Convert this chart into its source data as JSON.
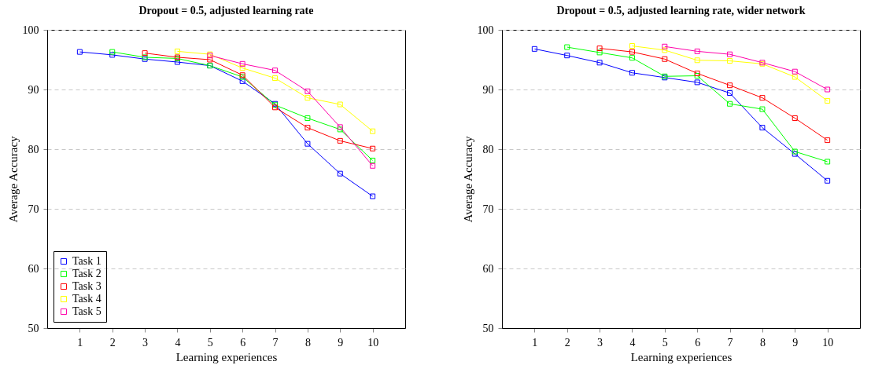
{
  "chart_data": [
    {
      "type": "line",
      "title": "Dropout = 0.5, adjusted learning rate",
      "xlabel": "Learning experiences",
      "ylabel": "Average Accuracy",
      "x": [
        1,
        2,
        3,
        4,
        5,
        6,
        7,
        8,
        9,
        10
      ],
      "xlim": [
        0,
        11
      ],
      "xticks": [
        1,
        2,
        3,
        4,
        5,
        6,
        7,
        8,
        9,
        10
      ],
      "ylim": [
        50,
        100
      ],
      "yticks": [
        50,
        60,
        70,
        80,
        90,
        100
      ],
      "grid": "y",
      "legend": "bottom left",
      "marker": "square",
      "line_style": "solid",
      "series": [
        {
          "name": "Task 1",
          "color": "#0000ff",
          "values": [
            96.3,
            95.8,
            95.1,
            94.6,
            94.0,
            91.4,
            87.6,
            80.9,
            75.9,
            72.1
          ]
        },
        {
          "name": "Task 2",
          "color": "#00ff00",
          "values": [
            null,
            96.3,
            95.4,
            95.2,
            94.0,
            92.1,
            87.4,
            85.2,
            83.3,
            78.1
          ]
        },
        {
          "name": "Task 3",
          "color": "#ff0000",
          "values": [
            null,
            null,
            96.1,
            95.4,
            95.0,
            92.4,
            87.0,
            83.6,
            81.4,
            80.1
          ]
        },
        {
          "name": "Task 4",
          "color": "#ffff00",
          "values": [
            null,
            null,
            null,
            96.4,
            95.9,
            93.6,
            91.9,
            88.6,
            87.5,
            83.0
          ]
        },
        {
          "name": "Task 5",
          "color": "#ff00aa",
          "values": [
            null,
            null,
            null,
            null,
            95.7,
            94.3,
            93.2,
            89.7,
            83.7,
            77.2
          ]
        }
      ]
    },
    {
      "type": "line",
      "title": "Dropout = 0.5, adjusted learning rate, wider network",
      "xlabel": "Learning experiences",
      "ylabel": "Average Accuracy",
      "x": [
        1,
        2,
        3,
        4,
        5,
        6,
        7,
        8,
        9,
        10
      ],
      "xlim": [
        0,
        11
      ],
      "xticks": [
        1,
        2,
        3,
        4,
        5,
        6,
        7,
        8,
        9,
        10
      ],
      "ylim": [
        50,
        100
      ],
      "yticks": [
        50,
        60,
        70,
        80,
        90,
        100
      ],
      "grid": "y",
      "legend": "bottom left",
      "marker": "square",
      "line_style": "solid",
      "series": [
        {
          "name": "Task 1",
          "color": "#0000ff",
          "values": [
            96.8,
            95.7,
            94.5,
            92.8,
            92.0,
            91.2,
            89.4,
            83.6,
            79.2,
            74.7
          ]
        },
        {
          "name": "Task 2",
          "color": "#00ff00",
          "values": [
            null,
            97.1,
            96.2,
            95.3,
            92.2,
            92.3,
            87.6,
            86.7,
            79.6,
            77.9
          ]
        },
        {
          "name": "Task 3",
          "color": "#ff0000",
          "values": [
            null,
            null,
            96.9,
            96.3,
            95.1,
            92.7,
            90.7,
            88.6,
            85.2,
            81.5
          ]
        },
        {
          "name": "Task 4",
          "color": "#ffff00",
          "values": [
            null,
            null,
            null,
            97.3,
            96.6,
            94.9,
            94.8,
            94.3,
            92.1,
            88.1
          ]
        },
        {
          "name": "Task 5",
          "color": "#ff00aa",
          "values": [
            null,
            null,
            null,
            null,
            97.2,
            96.4,
            95.9,
            94.5,
            93.0,
            90.0
          ]
        }
      ]
    }
  ]
}
